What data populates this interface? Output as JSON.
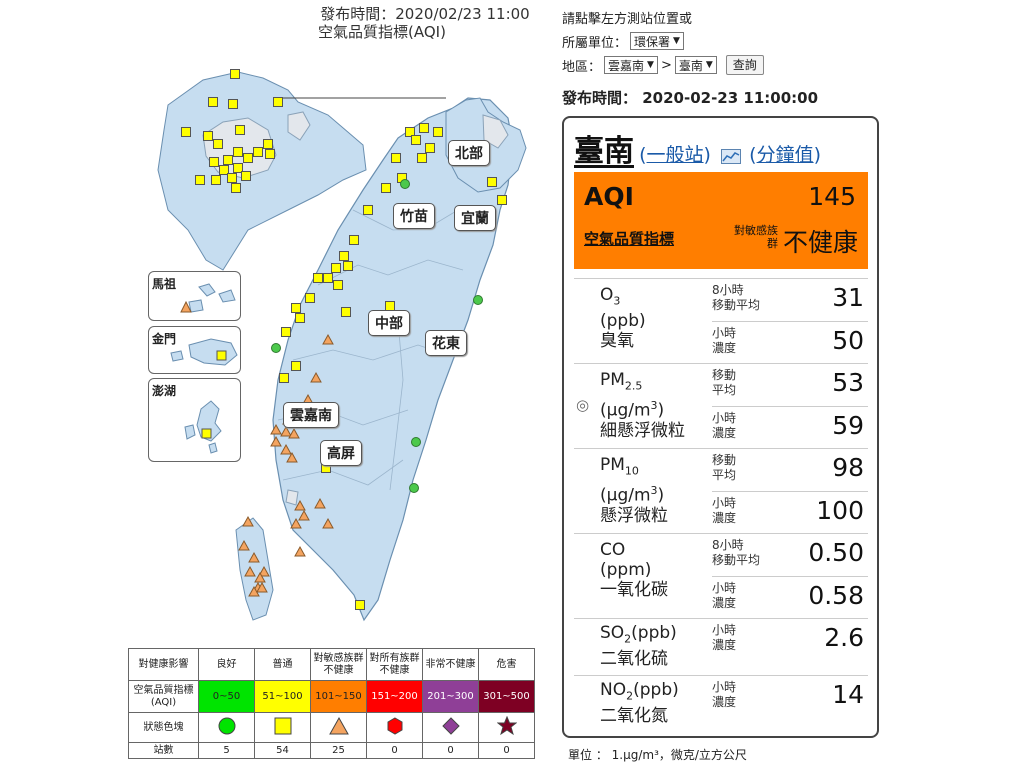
{
  "map_header": {
    "publish": "發布時間：2020/02/23 11:00",
    "index": "空氣品質指標(AQI)"
  },
  "regions": {
    "north": "北部",
    "zhumiao": "竹苗",
    "yilan": "宜蘭",
    "central": "中部",
    "hualien": "花東",
    "yunjianan": "雲嘉南",
    "kaoping": "高屏"
  },
  "insets": {
    "matsu": "馬祖",
    "kinmen": "金門",
    "penghu": "澎湖"
  },
  "legend": {
    "row_labels": [
      "對健康影響",
      "空氣品質指標(AQI)",
      "狀態色塊",
      "站數"
    ],
    "levels": [
      {
        "name": "良好",
        "range": "0~50",
        "color": "#00e400",
        "icon": "circle-icon",
        "count": "5"
      },
      {
        "name": "普通",
        "range": "51~100",
        "color": "#ffff00",
        "icon": "square-icon",
        "count": "54"
      },
      {
        "name": "對敏感族群不健康",
        "range": "101~150",
        "color": "#ff7e00",
        "icon": "triangle-icon",
        "count": "25"
      },
      {
        "name": "對所有族群不健康",
        "range": "151~200",
        "color": "#ff0000",
        "icon": "hexagon-icon",
        "count": "0"
      },
      {
        "name": "非常不健康",
        "range": "201~300",
        "color": "#8f3f97",
        "icon": "diamond-icon",
        "count": "0"
      },
      {
        "name": "危害",
        "range": "301~500",
        "color": "#7e0023",
        "icon": "star-icon",
        "count": "0"
      }
    ]
  },
  "controls": {
    "hint": "請點擊左方測站位置或",
    "agency_label": "所屬單位：",
    "agency_value": "環保署",
    "area_label": "地區：",
    "region_value": "雲嘉南",
    "arrow": ">",
    "station_value": "臺南",
    "query_button": "查詢"
  },
  "publish_time": "發布時間： 2020-02-23 11:00:00",
  "station": {
    "name": "臺南",
    "open_paren": "(",
    "type_link": "一般站",
    "close_paren": ")",
    "chart_icon": "chart-icon",
    "minute_link": "分鐘值"
  },
  "aqi": {
    "label": "AQI",
    "value": "145",
    "sub_link": "空氣品質指標",
    "group_label": "對敏感族群",
    "status": "不健康",
    "color": "#ff7e00"
  },
  "pollutants": [
    {
      "name": "O",
      "sub": "3",
      "sup": "",
      "unit": "(ppb)",
      "unit_sup": "",
      "unit_end": "",
      "cn": "臭氧",
      "rows": [
        {
          "label": "8小時\n移動平均",
          "value": "31"
        },
        {
          "label": "小時\n濃度",
          "value": "50"
        }
      ]
    },
    {
      "name": "PM",
      "sub": "2.5",
      "sup": "",
      "unit": "(μg/m",
      "unit_sup": "3",
      "unit_end": ")",
      "cn": "細懸浮微粒",
      "rows": [
        {
          "label": "移動\n平均",
          "value": "53"
        },
        {
          "label": "小時\n濃度",
          "value": "59"
        }
      ]
    },
    {
      "name": "PM",
      "sub": "10",
      "sup": "",
      "unit": "(μg/m",
      "unit_sup": "3",
      "unit_end": ")",
      "cn": "懸浮微粒",
      "rows": [
        {
          "label": "移動\n平均",
          "value": "98"
        },
        {
          "label": "小時\n濃度",
          "value": "100"
        }
      ]
    },
    {
      "name": "CO",
      "sub": "",
      "sup": "",
      "unit": "(ppm)",
      "unit_sup": "",
      "unit_end": "",
      "cn": "一氧化碳",
      "rows": [
        {
          "label": "8小時\n移動平均",
          "value": "0.50"
        },
        {
          "label": "小時\n濃度",
          "value": "0.58"
        }
      ]
    },
    {
      "name": "SO",
      "sub": "2",
      "sup": "",
      "unit": "(ppb)",
      "unit_sup": "",
      "unit_end": "",
      "cn": "二氧化硫",
      "inline_unit": true,
      "rows": [
        {
          "label": "小時\n濃度",
          "value": "2.6"
        }
      ]
    },
    {
      "name": "NO",
      "sub": "2",
      "sup": "",
      "unit": "(ppb)",
      "unit_sup": "",
      "unit_end": "",
      "cn": "二氧化氮",
      "inline_unit": true,
      "rows": [
        {
          "label": "小時\n濃度",
          "value": "14"
        }
      ]
    }
  ],
  "selected_marker": "◎",
  "unit_note": "單位 ： 1.μg/m³，微克/立方公尺"
}
